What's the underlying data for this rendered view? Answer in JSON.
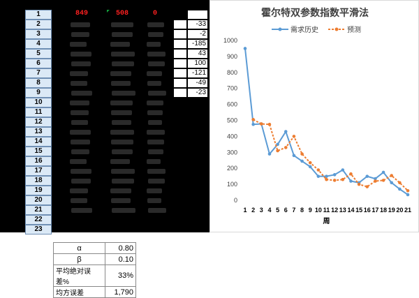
{
  "sheet": {
    "row_numbers": [
      "1",
      "2",
      "3",
      "4",
      "5",
      "6",
      "7",
      "8",
      "9",
      "10",
      "11",
      "12",
      "13",
      "14",
      "15",
      "16",
      "17",
      "18",
      "19",
      "20",
      "21",
      "22",
      "23"
    ],
    "row1_values": [
      "849",
      "508",
      "0"
    ],
    "diff_values": [
      "",
      "-33",
      "-2",
      "-185",
      "43",
      "100",
      "-121",
      "-49",
      "-23"
    ]
  },
  "params": [
    {
      "label": "α",
      "value": "0.80"
    },
    {
      "label": "β",
      "value": "0.10"
    },
    {
      "label": "平均绝对误差%",
      "value": "33%"
    },
    {
      "label": "均方误差",
      "value": "1,790"
    }
  ],
  "chart_data": {
    "type": "line",
    "title": "霍尔特双参数指数平滑法",
    "xlabel": "周",
    "ylabel": "",
    "x": [
      1,
      2,
      3,
      4,
      5,
      6,
      7,
      8,
      9,
      10,
      11,
      12,
      13,
      14,
      15,
      16,
      17,
      18,
      19,
      20,
      21
    ],
    "ylim": [
      0,
      1000
    ],
    "yticks": [
      0,
      100,
      200,
      300,
      400,
      500,
      600,
      700,
      800,
      900,
      1000
    ],
    "grid": false,
    "legend_position": "top",
    "series": [
      {
        "name": "需求历史",
        "color": "#5b9bd5",
        "style": "solid",
        "marker": "circle",
        "values": [
          950,
          475,
          478,
          290,
          350,
          430,
          280,
          245,
          210,
          150,
          150,
          160,
          190,
          120,
          110,
          150,
          135,
          175,
          110,
          70,
          35
        ]
      },
      {
        "name": "预测",
        "color": "#ed7d31",
        "style": "dashed",
        "marker": "circle",
        "values": [
          null,
          505,
          478,
          475,
          310,
          330,
          400,
          290,
          235,
          190,
          130,
          125,
          130,
          165,
          100,
          85,
          120,
          125,
          155,
          110,
          60
        ]
      }
    ]
  }
}
